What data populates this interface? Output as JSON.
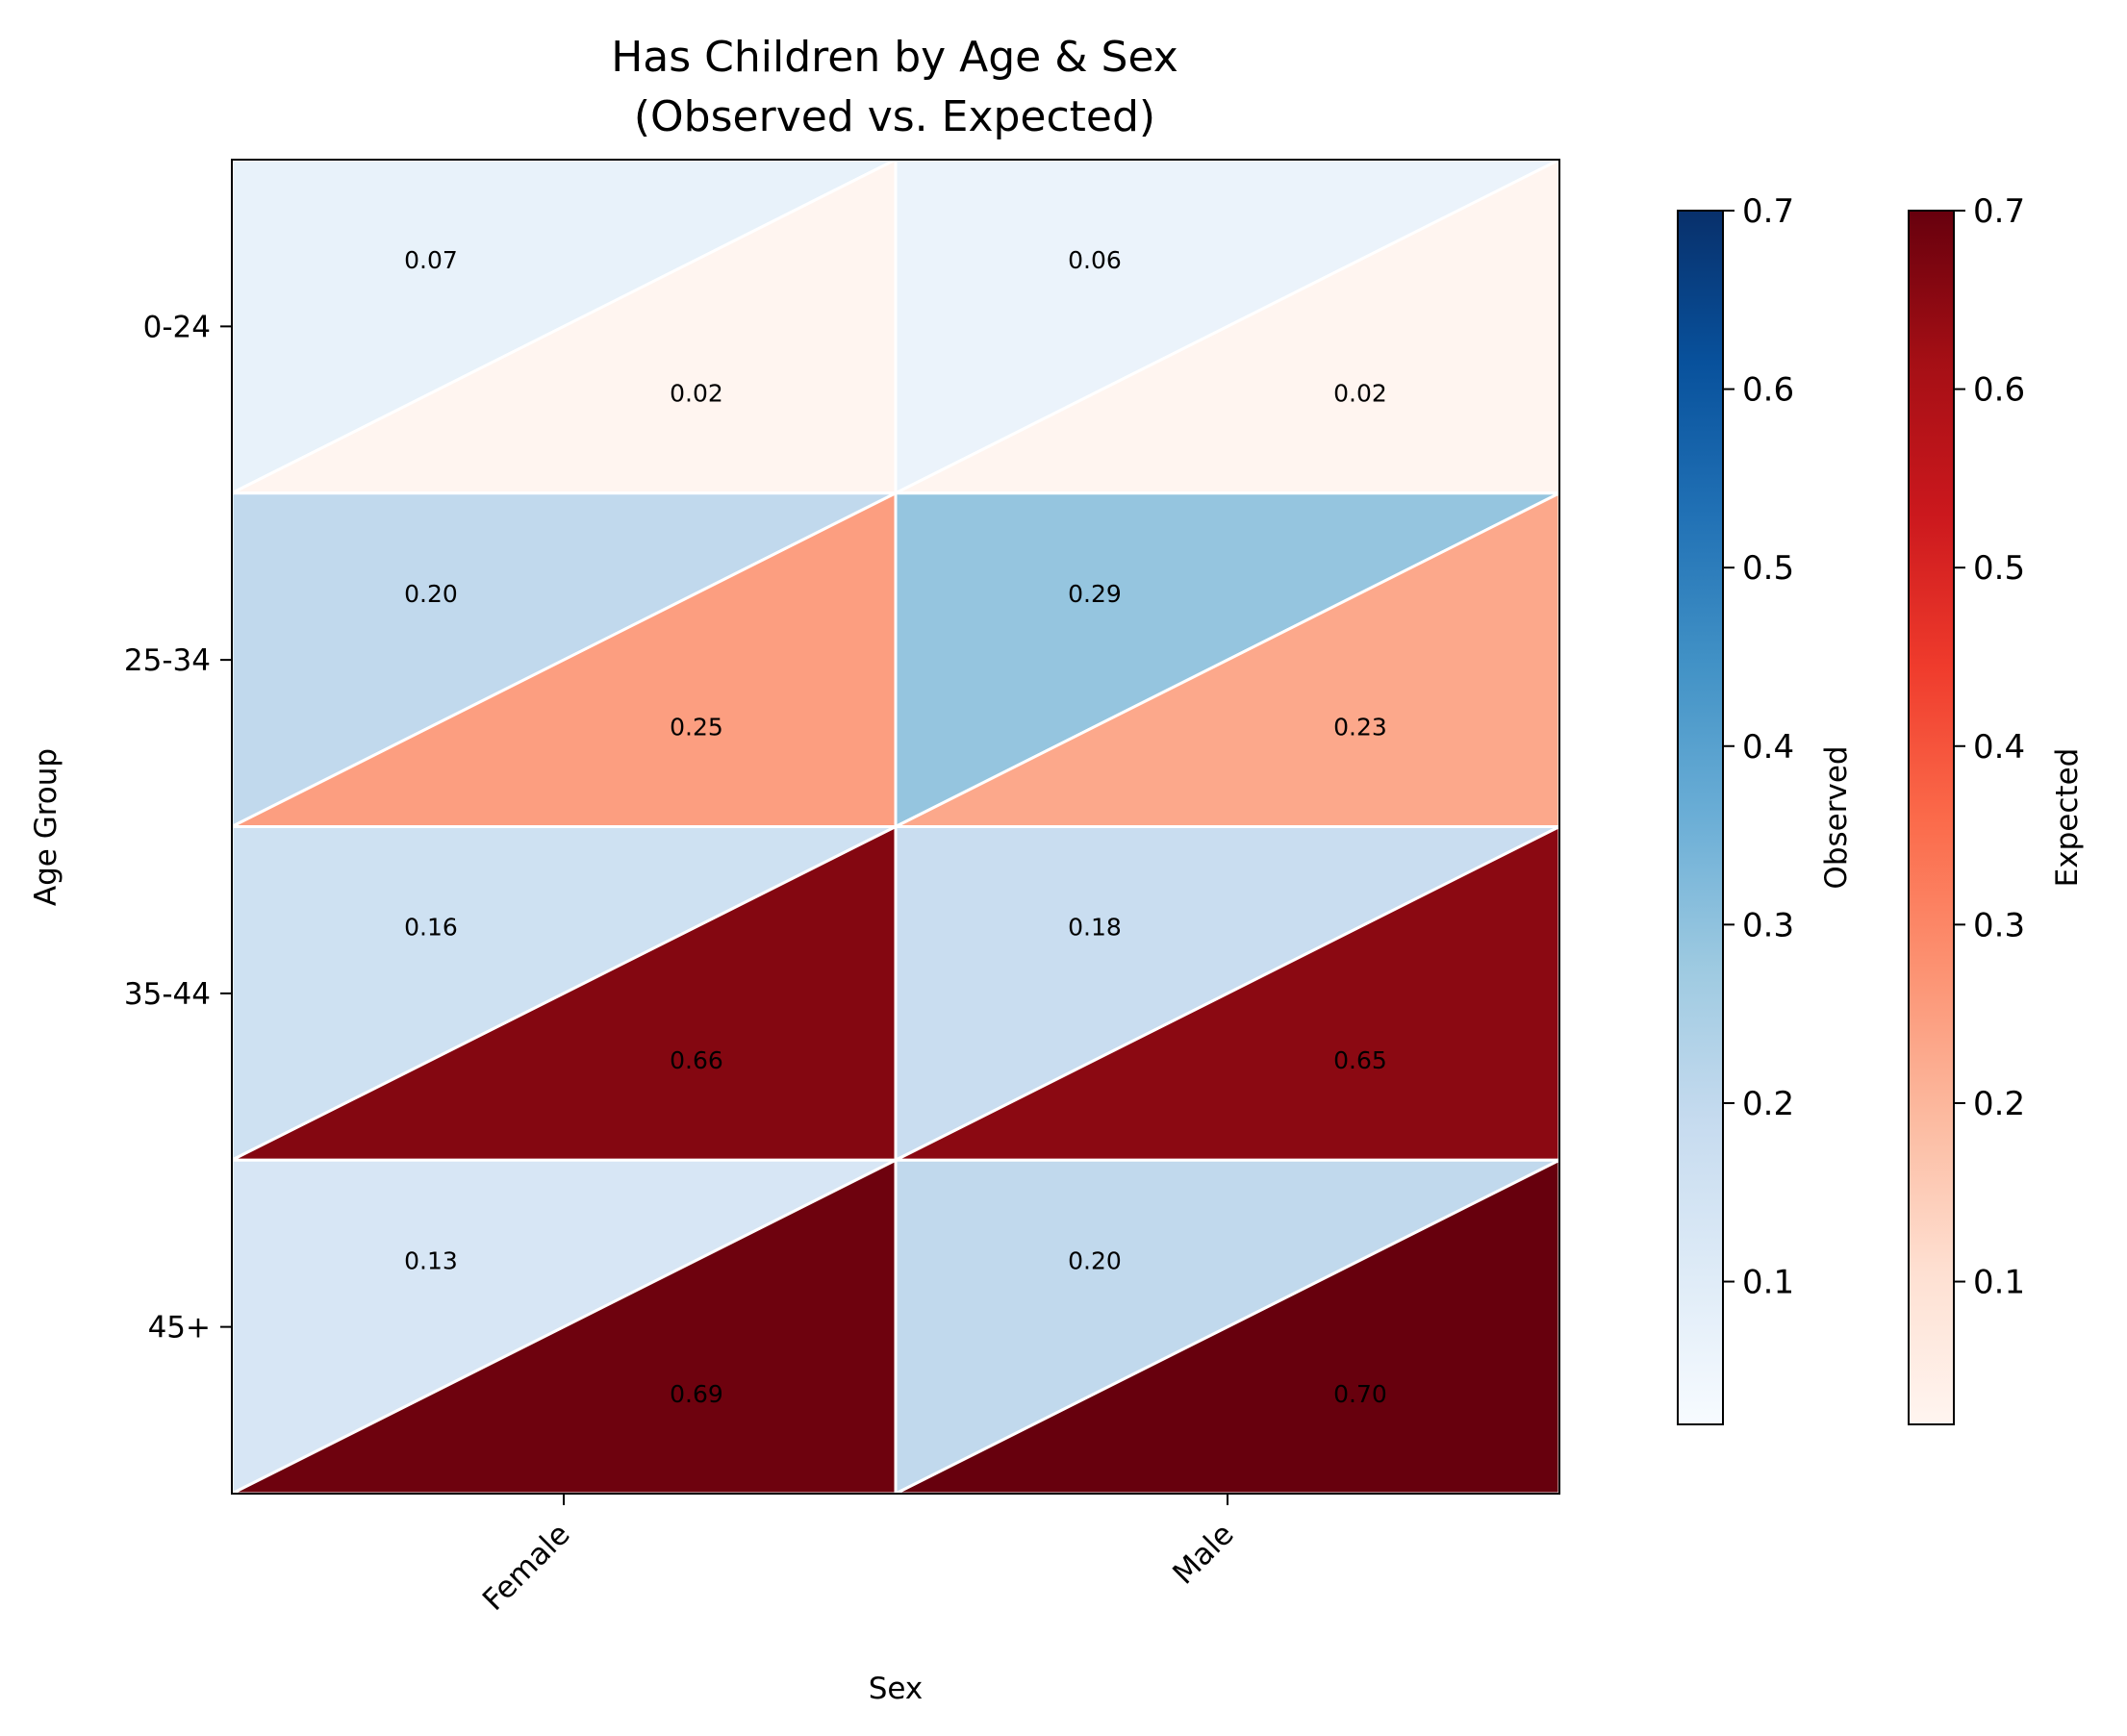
{
  "chart_data": {
    "type": "heatmap",
    "title_lines": [
      "Has Children by Age & Sex",
      "(Observed vs. Expected)"
    ],
    "xlabel": "Sex",
    "ylabel": "Age Group",
    "x_categories": [
      "Female",
      "Male"
    ],
    "y_categories": [
      "0-24",
      "25-34",
      "35-44",
      "45+"
    ],
    "observed": [
      [
        0.07,
        0.06
      ],
      [
        0.2,
        0.29
      ],
      [
        0.16,
        0.18
      ],
      [
        0.13,
        0.2
      ]
    ],
    "expected": [
      [
        0.02,
        0.02
      ],
      [
        0.25,
        0.23
      ],
      [
        0.66,
        0.65
      ],
      [
        0.69,
        0.7
      ]
    ],
    "value_labels": {
      "observed": [
        [
          "0.07",
          "0.06"
        ],
        [
          "0.20",
          "0.29"
        ],
        [
          "0.16",
          "0.18"
        ],
        [
          "0.13",
          "0.20"
        ]
      ],
      "expected": [
        [
          "0.02",
          "0.02"
        ],
        [
          "0.25",
          "0.23"
        ],
        [
          "0.66",
          "0.65"
        ],
        [
          "0.69",
          "0.70"
        ]
      ]
    },
    "colorbars": [
      {
        "label": "Observed",
        "colormap": "Blues",
        "range": [
          0.02,
          0.7
        ],
        "ticks": [
          0.1,
          0.2,
          0.3,
          0.4,
          0.5,
          0.6,
          0.7
        ],
        "tick_labels": [
          "0.1",
          "0.2",
          "0.3",
          "0.4",
          "0.5",
          "0.6",
          "0.7"
        ]
      },
      {
        "label": "Expected",
        "colormap": "Reds",
        "range": [
          0.02,
          0.7
        ],
        "ticks": [
          0.1,
          0.2,
          0.3,
          0.4,
          0.5,
          0.6,
          0.7
        ],
        "tick_labels": [
          "0.1",
          "0.2",
          "0.3",
          "0.4",
          "0.5",
          "0.6",
          "0.7"
        ]
      }
    ],
    "upper_triangle": "observed",
    "lower_triangle": "expected",
    "divider_color": "#ffffff"
  }
}
